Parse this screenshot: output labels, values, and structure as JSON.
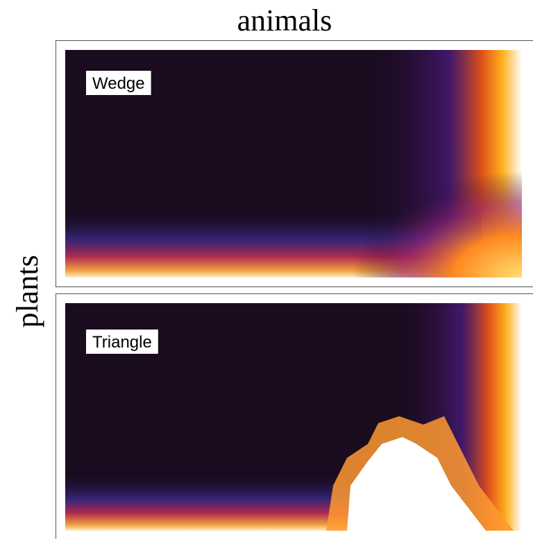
{
  "chart_data": {
    "type": "heatmap",
    "x_label": "animals",
    "y_label": "plants",
    "panels": [
      {
        "label": "Wedge"
      },
      {
        "label": "Triangle"
      }
    ]
  }
}
